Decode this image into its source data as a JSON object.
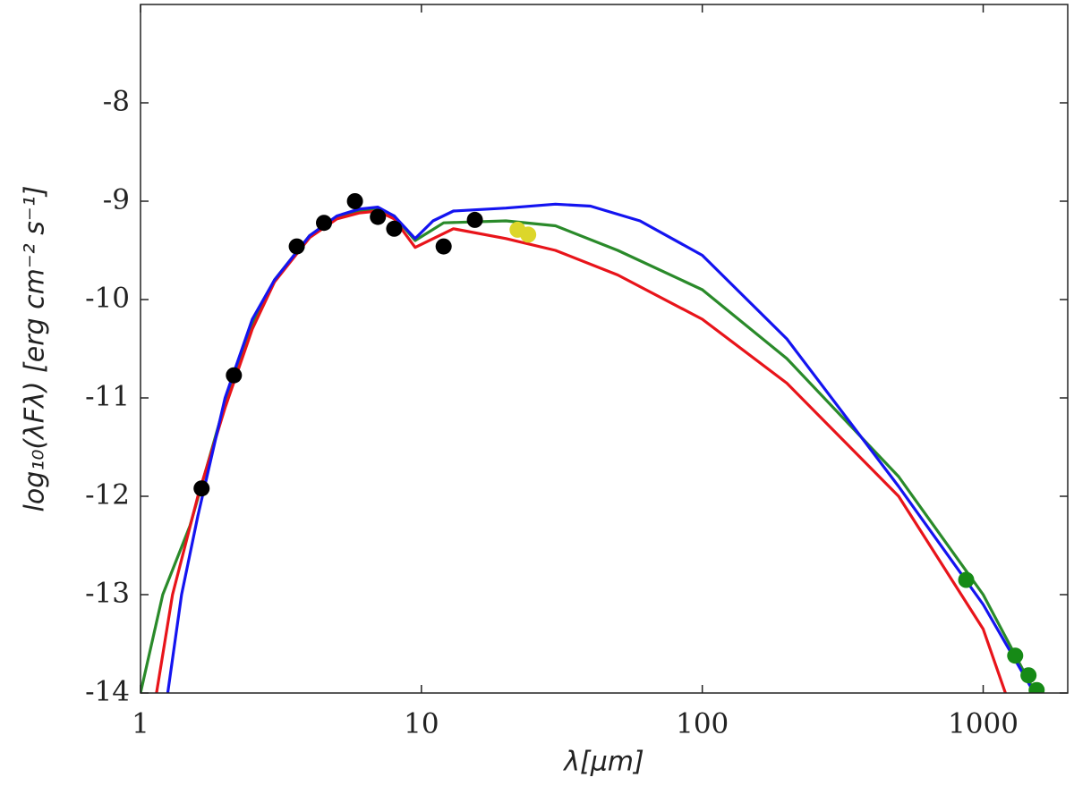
{
  "chart_data": {
    "type": "line",
    "xlabel": "λ[μm]",
    "ylabel": "log₁₀(λFλ) [erg cm⁻² s⁻¹]",
    "xscale": "log",
    "xlim": [
      1,
      2000
    ],
    "ylim": [
      -14,
      -7
    ],
    "xticks": [
      1,
      10,
      100,
      1000
    ],
    "yticks": [
      -14,
      -13,
      -12,
      -11,
      -10,
      -9,
      -8
    ],
    "series": [
      {
        "color": "#2a8a2a",
        "x": [
          1,
          1.2,
          1.5,
          2,
          2.5,
          3,
          4,
          5,
          6,
          7,
          8,
          9.5,
          12,
          20,
          30,
          50,
          100,
          200,
          500,
          1000,
          1500
        ],
        "values": [
          -14,
          -13.0,
          -12.3,
          -11.05,
          -10.25,
          -9.8,
          -9.35,
          -9.17,
          -9.1,
          -9.08,
          -9.15,
          -9.4,
          -9.22,
          -9.2,
          -9.25,
          -9.5,
          -9.9,
          -10.6,
          -11.8,
          -13.0,
          -13.95
        ]
      },
      {
        "color": "#e8141a",
        "x": [
          1.14,
          1.3,
          1.6,
          2,
          2.5,
          3,
          4,
          5,
          6,
          7,
          8,
          9.5,
          13,
          20,
          30,
          50,
          100,
          200,
          500,
          1000,
          1200
        ],
        "values": [
          -14,
          -13.0,
          -12.0,
          -11.1,
          -10.3,
          -9.82,
          -9.37,
          -9.18,
          -9.12,
          -9.1,
          -9.18,
          -9.47,
          -9.28,
          -9.38,
          -9.5,
          -9.75,
          -10.2,
          -10.85,
          -12.0,
          -13.35,
          -14.0
        ]
      },
      {
        "color": "#1414f0",
        "x": [
          1.25,
          1.4,
          1.6,
          2,
          2.5,
          3,
          4,
          5,
          6,
          7,
          8,
          9.5,
          11,
          13,
          20,
          30,
          40,
          60,
          100,
          200,
          500,
          1000,
          1520
        ],
        "values": [
          -14,
          -13.0,
          -12.2,
          -11.0,
          -10.2,
          -9.8,
          -9.35,
          -9.15,
          -9.08,
          -9.06,
          -9.15,
          -9.38,
          -9.2,
          -9.1,
          -9.07,
          -9.03,
          -9.05,
          -9.2,
          -9.55,
          -10.4,
          -11.9,
          -13.1,
          -14.0
        ]
      }
    ],
    "points": [
      {
        "color": "#000000",
        "x": [
          1.65,
          2.15,
          3.6,
          4.5,
          5.8,
          7.0,
          8.0,
          12,
          15.5
        ],
        "values": [
          -11.92,
          -10.77,
          -9.46,
          -9.22,
          -9.0,
          -9.16,
          -9.28,
          -9.46,
          -9.19
        ]
      },
      {
        "color": "#dcd62a",
        "x": [
          22,
          24
        ],
        "values": [
          -9.29,
          -9.34
        ]
      },
      {
        "color": "#168a16",
        "x": [
          870,
          1300,
          1450,
          1550
        ],
        "values": [
          -12.85,
          -13.62,
          -13.82,
          -13.97
        ]
      }
    ]
  }
}
